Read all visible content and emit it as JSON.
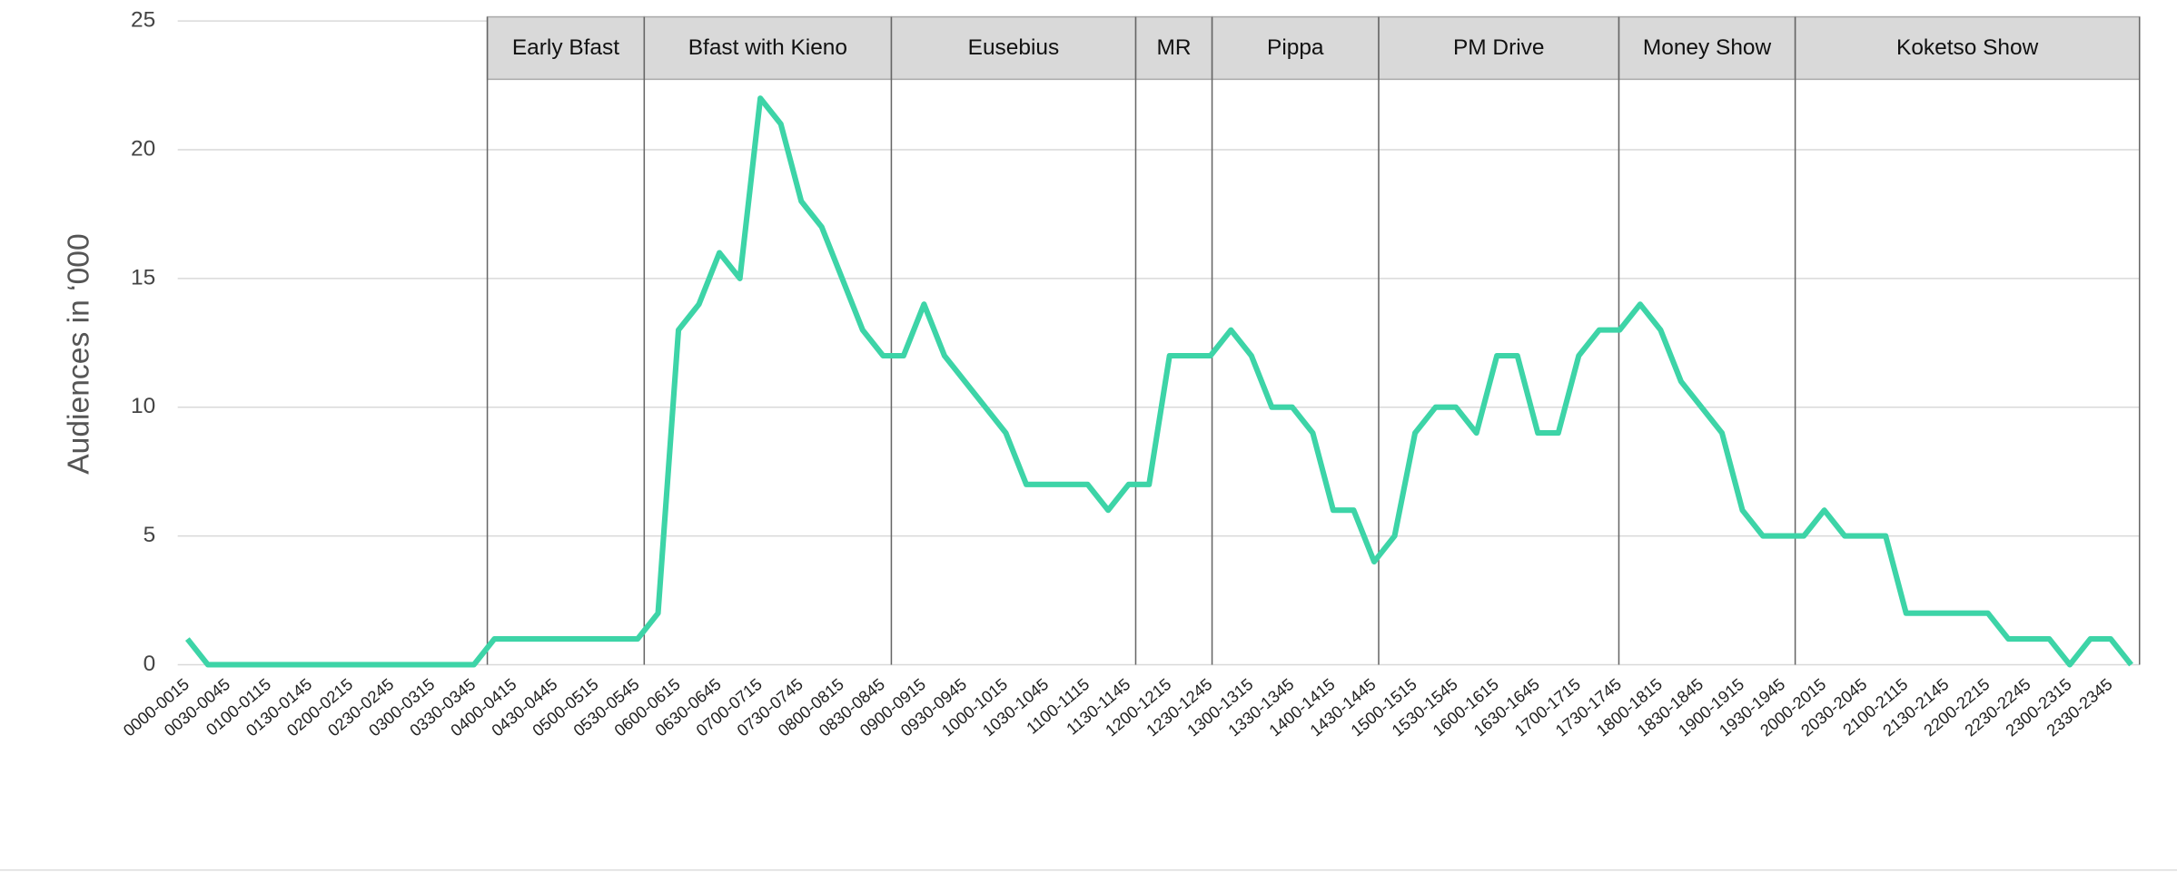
{
  "chart_data": {
    "type": "line",
    "y_label": "Audiences in ‘000",
    "categories": [
      "0000-0015",
      null,
      "0030-0045",
      null,
      "0100-0115",
      null,
      "0130-0145",
      null,
      "0200-0215",
      null,
      "0230-0245",
      null,
      "0300-0315",
      null,
      "0330-0345",
      null,
      "0400-0415",
      null,
      "0430-0445",
      null,
      "0500-0515",
      null,
      "0530-0545",
      null,
      "0600-0615",
      null,
      "0630-0645",
      null,
      "0700-0715",
      null,
      "0730-0745",
      null,
      "0800-0815",
      null,
      "0830-0845",
      null,
      "0900-0915",
      null,
      "0930-0945",
      null,
      "1000-1015",
      null,
      "1030-1045",
      null,
      "1100-1115",
      null,
      "1130-1145",
      null,
      "1200-1215",
      null,
      "1230-1245",
      null,
      "1300-1315",
      null,
      "1330-1345",
      null,
      "1400-1415",
      null,
      "1430-1445",
      null,
      "1500-1515",
      null,
      "1530-1545",
      null,
      "1600-1615",
      null,
      "1630-1645",
      null,
      "1700-1715",
      null,
      "1730-1745",
      null,
      "1800-1815",
      null,
      "1830-1845",
      null,
      "1900-1915",
      null,
      "1930-1945",
      null,
      "2000-2015",
      null,
      "2030-2045",
      null,
      "2100-2115",
      null,
      "2130-2145",
      null,
      "2200-2215",
      null,
      "2230-2245",
      null,
      "2300-2315",
      null,
      "2330-2345",
      null
    ],
    "values": [
      1,
      0,
      0,
      0,
      0,
      0,
      0,
      0,
      0,
      0,
      0,
      0,
      0,
      0,
      0,
      1,
      1,
      1,
      1,
      1,
      1,
      1,
      1,
      2,
      13,
      14,
      16,
      15,
      22,
      21,
      18,
      17,
      15,
      13,
      12,
      12,
      14,
      12,
      11,
      10,
      9,
      7,
      7,
      7,
      7,
      6,
      7,
      7,
      12,
      12,
      12,
      13,
      12,
      10,
      10,
      9,
      6,
      6,
      4,
      5,
      9,
      10,
      10,
      9,
      12,
      12,
      9,
      9,
      12,
      13,
      13,
      14,
      13,
      11,
      10,
      9,
      6,
      5,
      5,
      5,
      6,
      5,
      5,
      5,
      2,
      2,
      2,
      2,
      2,
      1,
      1,
      1,
      0,
      1,
      1,
      0
    ],
    "color": "#3dd4a7",
    "ylim": [
      0,
      25
    ],
    "yticks": [
      0,
      5,
      10,
      15,
      20,
      25
    ],
    "grid": true,
    "shows": [
      "Early Bfast",
      "Bfast with Kieno",
      "Eusebius",
      "MR",
      "Pippa",
      "PM Drive",
      "Money Show",
      "Koketso Show"
    ]
  }
}
